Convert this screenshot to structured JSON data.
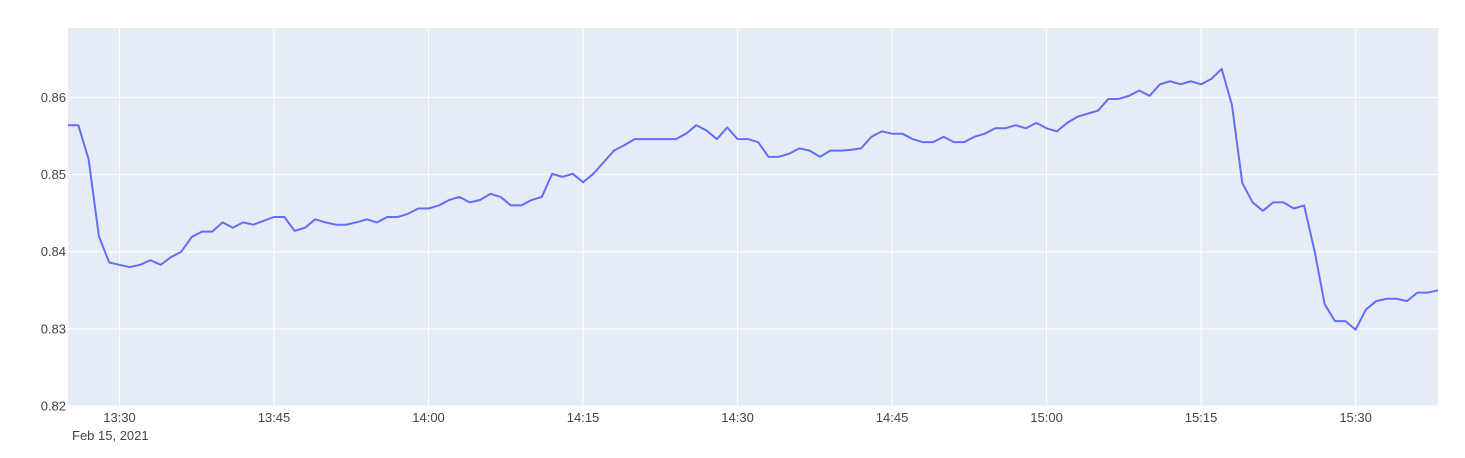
{
  "chart_data": {
    "type": "line",
    "x_axis": {
      "type": "date",
      "range": [
        "2021-02-15 13:25",
        "2021-02-15 15:38"
      ],
      "tick_values": [
        "2021-02-15 13:30",
        "2021-02-15 13:45",
        "2021-02-15 14:00",
        "2021-02-15 14:15",
        "2021-02-15 14:30",
        "2021-02-15 14:45",
        "2021-02-15 15:00",
        "2021-02-15 15:15",
        "2021-02-15 15:30"
      ],
      "tick_labels": [
        "13:30",
        "13:45",
        "14:00",
        "14:15",
        "14:30",
        "14:45",
        "15:00",
        "15:15",
        "15:30"
      ],
      "date_label": "Feb 15, 2021"
    },
    "y_axis": {
      "range": [
        0.82,
        0.869
      ],
      "tick_values": [
        0.82,
        0.83,
        0.84,
        0.85,
        0.86
      ],
      "tick_labels": [
        "0.82",
        "0.83",
        "0.84",
        "0.85",
        "0.86"
      ]
    },
    "grid": true,
    "colors": {
      "plot_background": "#e5ecf6",
      "series_line": "#636efa"
    },
    "series": [
      {
        "x": [
          "2021-02-15 13:25",
          "2021-02-15 13:26",
          "2021-02-15 13:27",
          "2021-02-15 13:28",
          "2021-02-15 13:29",
          "2021-02-15 13:30",
          "2021-02-15 13:31",
          "2021-02-15 13:32",
          "2021-02-15 13:33",
          "2021-02-15 13:34",
          "2021-02-15 13:35",
          "2021-02-15 13:36",
          "2021-02-15 13:37",
          "2021-02-15 13:38",
          "2021-02-15 13:39",
          "2021-02-15 13:40",
          "2021-02-15 13:41",
          "2021-02-15 13:42",
          "2021-02-15 13:43",
          "2021-02-15 13:44",
          "2021-02-15 13:45",
          "2021-02-15 13:46",
          "2021-02-15 13:47",
          "2021-02-15 13:48",
          "2021-02-15 13:49",
          "2021-02-15 13:50",
          "2021-02-15 13:51",
          "2021-02-15 13:52",
          "2021-02-15 13:53",
          "2021-02-15 13:54",
          "2021-02-15 13:55",
          "2021-02-15 13:56",
          "2021-02-15 13:57",
          "2021-02-15 13:58",
          "2021-02-15 13:59",
          "2021-02-15 14:00",
          "2021-02-15 14:01",
          "2021-02-15 14:02",
          "2021-02-15 14:03",
          "2021-02-15 14:04",
          "2021-02-15 14:05",
          "2021-02-15 14:06",
          "2021-02-15 14:07",
          "2021-02-15 14:08",
          "2021-02-15 14:09",
          "2021-02-15 14:10",
          "2021-02-15 14:11",
          "2021-02-15 14:12",
          "2021-02-15 14:13",
          "2021-02-15 14:14",
          "2021-02-15 14:15",
          "2021-02-15 14:16",
          "2021-02-15 14:17",
          "2021-02-15 14:18",
          "2021-02-15 14:19",
          "2021-02-15 14:20",
          "2021-02-15 14:21",
          "2021-02-15 14:22",
          "2021-02-15 14:23",
          "2021-02-15 14:24",
          "2021-02-15 14:25",
          "2021-02-15 14:26",
          "2021-02-15 14:27",
          "2021-02-15 14:28",
          "2021-02-15 14:29",
          "2021-02-15 14:30",
          "2021-02-15 14:31",
          "2021-02-15 14:32",
          "2021-02-15 14:33",
          "2021-02-15 14:34",
          "2021-02-15 14:35",
          "2021-02-15 14:36",
          "2021-02-15 14:37",
          "2021-02-15 14:38",
          "2021-02-15 14:39",
          "2021-02-15 14:40",
          "2021-02-15 14:41",
          "2021-02-15 14:42",
          "2021-02-15 14:43",
          "2021-02-15 14:44",
          "2021-02-15 14:45",
          "2021-02-15 14:46",
          "2021-02-15 14:47",
          "2021-02-15 14:48",
          "2021-02-15 14:49",
          "2021-02-15 14:50",
          "2021-02-15 14:51",
          "2021-02-15 14:52",
          "2021-02-15 14:53",
          "2021-02-15 14:54",
          "2021-02-15 14:55",
          "2021-02-15 14:56",
          "2021-02-15 14:57",
          "2021-02-15 14:58",
          "2021-02-15 14:59",
          "2021-02-15 15:00",
          "2021-02-15 15:01",
          "2021-02-15 15:02",
          "2021-02-15 15:03",
          "2021-02-15 15:04",
          "2021-02-15 15:05",
          "2021-02-15 15:06",
          "2021-02-15 15:07",
          "2021-02-15 15:08",
          "2021-02-15 15:09",
          "2021-02-15 15:10",
          "2021-02-15 15:11",
          "2021-02-15 15:12",
          "2021-02-15 15:13",
          "2021-02-15 15:14",
          "2021-02-15 15:15",
          "2021-02-15 15:16",
          "2021-02-15 15:17",
          "2021-02-15 15:18",
          "2021-02-15 15:19",
          "2021-02-15 15:20",
          "2021-02-15 15:21",
          "2021-02-15 15:22",
          "2021-02-15 15:23",
          "2021-02-15 15:24",
          "2021-02-15 15:25",
          "2021-02-15 15:26",
          "2021-02-15 15:27",
          "2021-02-15 15:28",
          "2021-02-15 15:29",
          "2021-02-15 15:30",
          "2021-02-15 15:31",
          "2021-02-15 15:32",
          "2021-02-15 15:33",
          "2021-02-15 15:34",
          "2021-02-15 15:35",
          "2021-02-15 15:36",
          "2021-02-15 15:37",
          "2021-02-15 15:38"
        ],
        "y": [
          0.8564,
          0.8564,
          0.852,
          0.842,
          0.8386,
          0.8383,
          0.838,
          0.8383,
          0.8389,
          0.8383,
          0.8393,
          0.84,
          0.8419,
          0.8426,
          0.8426,
          0.8438,
          0.8431,
          0.8438,
          0.8435,
          0.844,
          0.8445,
          0.8445,
          0.8427,
          0.8431,
          0.8442,
          0.8438,
          0.8435,
          0.8435,
          0.8438,
          0.8442,
          0.8438,
          0.8445,
          0.8445,
          0.8449,
          0.8456,
          0.8456,
          0.846,
          0.8467,
          0.8471,
          0.8464,
          0.8467,
          0.8475,
          0.8471,
          0.846,
          0.846,
          0.8467,
          0.8471,
          0.8501,
          0.8497,
          0.8501,
          0.849,
          0.8501,
          0.8516,
          0.8531,
          0.8538,
          0.8546,
          0.8546,
          0.8546,
          0.8546,
          0.8546,
          0.8553,
          0.8564,
          0.8557,
          0.8546,
          0.8561,
          0.8546,
          0.8546,
          0.8542,
          0.8523,
          0.8523,
          0.8527,
          0.8534,
          0.8531,
          0.8523,
          0.8531,
          0.8531,
          0.8532,
          0.8534,
          0.8549,
          0.8556,
          0.8553,
          0.8553,
          0.8546,
          0.8542,
          0.8542,
          0.8549,
          0.8542,
          0.8542,
          0.8549,
          0.8553,
          0.856,
          0.856,
          0.8564,
          0.856,
          0.8567,
          0.856,
          0.8556,
          0.8567,
          0.8575,
          0.8579,
          0.8583,
          0.8598,
          0.8598,
          0.8602,
          0.8609,
          0.8602,
          0.8617,
          0.8621,
          0.8617,
          0.8621,
          0.8617,
          0.8624,
          0.8637,
          0.859,
          0.8489,
          0.8464,
          0.8453,
          0.8464,
          0.8464,
          0.8456,
          0.846,
          0.8402,
          0.8332,
          0.831,
          0.831,
          0.8299,
          0.8325,
          0.8336,
          0.8339,
          0.8339,
          0.8336,
          0.8347,
          0.8347,
          0.835
        ]
      }
    ]
  }
}
